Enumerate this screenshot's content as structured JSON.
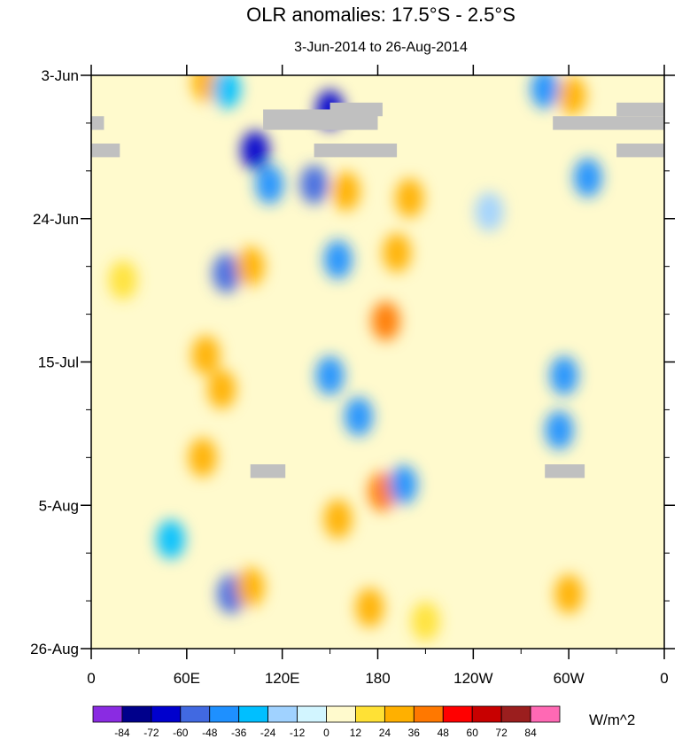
{
  "chart_data": {
    "type": "heatmap",
    "title": "OLR anomalies: 17.5°S - 2.5°S",
    "subtitle": "3-Jun-2014 to 26-Aug-2014",
    "x_ticks": [
      "0",
      "60E",
      "120E",
      "180",
      "120W",
      "60W",
      "0"
    ],
    "x_lon_range": [
      0,
      360
    ],
    "y_ticks": [
      "3-Jun",
      "24-Jun",
      "15-Jul",
      "5-Aug",
      "26-Aug"
    ],
    "y_day_range": [
      0,
      84
    ],
    "units": "W/m^2",
    "colorbar": {
      "levels": [
        "-84",
        "-72",
        "-60",
        "-48",
        "-36",
        "-24",
        "-12",
        "0",
        "12",
        "24",
        "36",
        "48",
        "60",
        "72",
        "84"
      ],
      "colors": [
        "#8a2be2",
        "#00008b",
        "#0000cd",
        "#4169e1",
        "#1e90ff",
        "#00bfff",
        "#a0d2ff",
        "#d2f5ff",
        "#fffacd",
        "#ffe135",
        "#ffb000",
        "#ff7800",
        "#ff0000",
        "#c80000",
        "#9b1e1e",
        "#ff69b4"
      ]
    },
    "missing_color": "#c0c0c0",
    "anomaly_features": [
      {
        "lon": 72,
        "day": 1,
        "value": 30
      },
      {
        "lon": 85,
        "day": 2,
        "value": -30
      },
      {
        "lon": 150,
        "day": 5,
        "value": -70
      },
      {
        "lon": 103,
        "day": 11,
        "value": -70
      },
      {
        "lon": 112,
        "day": 16,
        "value": -40
      },
      {
        "lon": 140,
        "day": 16,
        "value": -50
      },
      {
        "lon": 160,
        "day": 17,
        "value": 35
      },
      {
        "lon": 200,
        "day": 18,
        "value": 30
      },
      {
        "lon": 192,
        "day": 26,
        "value": 34
      },
      {
        "lon": 155,
        "day": 27,
        "value": -45
      },
      {
        "lon": 85,
        "day": 29,
        "value": -55
      },
      {
        "lon": 100,
        "day": 28,
        "value": 30
      },
      {
        "lon": 185,
        "day": 36,
        "value": 40
      },
      {
        "lon": 72,
        "day": 41,
        "value": 32
      },
      {
        "lon": 82,
        "day": 46,
        "value": 30
      },
      {
        "lon": 150,
        "day": 44,
        "value": -40
      },
      {
        "lon": 168,
        "day": 50,
        "value": -40
      },
      {
        "lon": 70,
        "day": 56,
        "value": 30
      },
      {
        "lon": 183,
        "day": 61,
        "value": 36
      },
      {
        "lon": 196,
        "day": 60,
        "value": -38
      },
      {
        "lon": 155,
        "day": 65,
        "value": 28
      },
      {
        "lon": 50,
        "day": 68,
        "value": -30
      },
      {
        "lon": 88,
        "day": 76,
        "value": -55
      },
      {
        "lon": 100,
        "day": 75,
        "value": 26
      },
      {
        "lon": 175,
        "day": 78,
        "value": 30
      },
      {
        "lon": 210,
        "day": 80,
        "value": 20
      },
      {
        "lon": 297,
        "day": 44,
        "value": -45
      },
      {
        "lon": 294,
        "day": 52,
        "value": -40
      },
      {
        "lon": 300,
        "day": 76,
        "value": 30
      },
      {
        "lon": 312,
        "day": 15,
        "value": -48
      },
      {
        "lon": 302,
        "day": 3,
        "value": 30
      },
      {
        "lon": 285,
        "day": 2,
        "value": -38
      },
      {
        "lon": 250,
        "day": 20,
        "value": -15
      },
      {
        "lon": 20,
        "day": 30,
        "value": 18
      }
    ],
    "missing_regions": [
      {
        "lon": [
          0,
          8
        ],
        "day": [
          6,
          8
        ]
      },
      {
        "lon": [
          0,
          18
        ],
        "day": [
          10,
          12
        ]
      },
      {
        "lon": [
          108,
          180
        ],
        "day": [
          5,
          8
        ]
      },
      {
        "lon": [
          150,
          183
        ],
        "day": [
          4,
          6
        ]
      },
      {
        "lon": [
          140,
          192
        ],
        "day": [
          10,
          12
        ]
      },
      {
        "lon": [
          290,
          360
        ],
        "day": [
          6,
          8
        ]
      },
      {
        "lon": [
          330,
          360
        ],
        "day": [
          4,
          6
        ]
      },
      {
        "lon": [
          330,
          360
        ],
        "day": [
          10,
          12
        ]
      },
      {
        "lon": [
          100,
          122
        ],
        "day": [
          57,
          59
        ]
      },
      {
        "lon": [
          285,
          310
        ],
        "day": [
          57,
          59
        ]
      }
    ]
  }
}
